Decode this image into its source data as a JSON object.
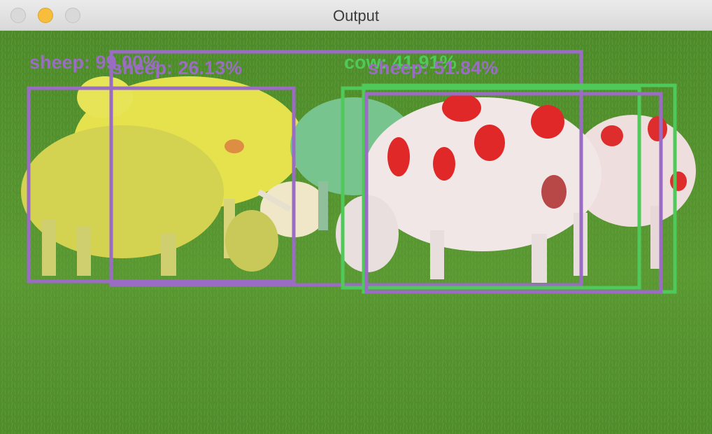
{
  "window": {
    "title": "Output",
    "buttons": [
      "close",
      "minimize",
      "zoom"
    ]
  },
  "colors": {
    "sheep_box": "#9b6cc4",
    "cow_box": "#4ec95a",
    "grass": "#4f8a2c"
  },
  "detections": [
    {
      "class": "sheep",
      "label": "sheep: 99.00%",
      "color": "#9b6cc4"
    },
    {
      "class": "sheep",
      "label": "sheep: 26.13%",
      "color": "#9b6cc4"
    },
    {
      "class": "cow",
      "label": "cow: 41.91%",
      "color": "#4ec95a"
    },
    {
      "class": "sheep",
      "label": "sheep: 51.84%",
      "color": "#9b6cc4"
    },
    {
      "class": "sheep",
      "label": "sheep",
      "color": "#9b6cc4"
    }
  ],
  "labels": {
    "l0": "sheep: 99.00%",
    "l1": "sheep: 26.13%",
    "l2": "cow: 41.91%",
    "l3": "sheep: 51.84%"
  }
}
